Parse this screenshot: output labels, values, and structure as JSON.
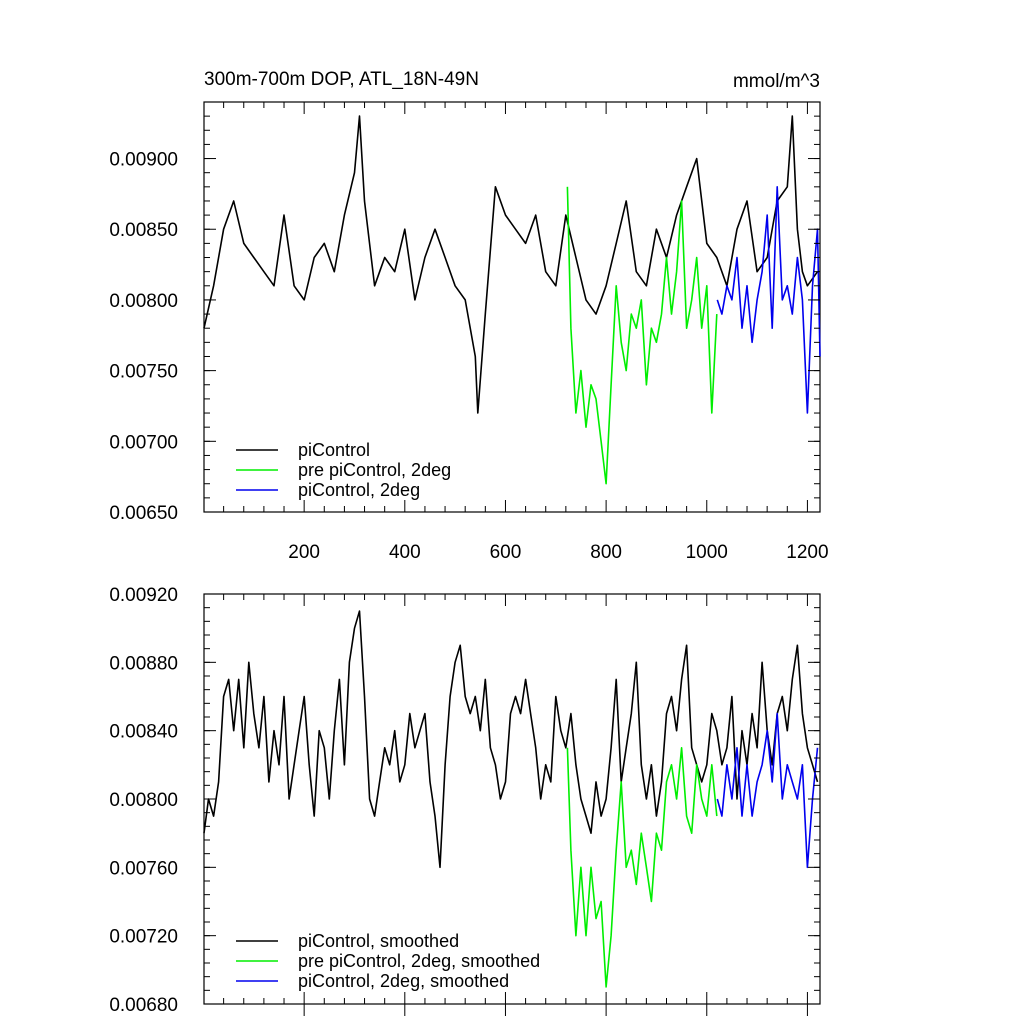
{
  "chart_data": [
    {
      "type": "line",
      "title": "300m-700m DOP, ATL_18N-49N",
      "units": "mmol/m^3",
      "xlim": [
        1,
        1225
      ],
      "ylim": [
        0.0065,
        0.0094
      ],
      "xticks": [
        200,
        400,
        600,
        800,
        1000,
        1200
      ],
      "xtick_labels": [
        "200",
        "400",
        "600",
        "800",
        "1000",
        "1200"
      ],
      "yticks": [
        0.0065,
        0.007,
        0.0075,
        0.008,
        0.0085,
        0.009
      ],
      "ytick_labels": [
        "0.00650",
        "0.00700",
        "0.00750",
        "0.00800",
        "0.00850",
        "0.00900"
      ],
      "legend": [
        "piControl",
        "pre piControl, 2deg",
        "piControl, 2deg"
      ],
      "legend_position": "bottom-left",
      "series": [
        {
          "name": "piControl",
          "color": "#000000",
          "x": [
            1,
            20,
            40,
            60,
            80,
            100,
            120,
            140,
            160,
            180,
            200,
            220,
            240,
            260,
            280,
            300,
            310,
            320,
            340,
            360,
            380,
            400,
            420,
            440,
            460,
            480,
            500,
            520,
            540,
            545,
            560,
            580,
            600,
            620,
            640,
            660,
            680,
            700,
            720,
            740,
            760,
            780,
            800,
            820,
            840,
            860,
            880,
            900,
            920,
            940,
            960,
            980,
            1000,
            1020,
            1040,
            1060,
            1080,
            1100,
            1120,
            1140,
            1160,
            1170,
            1180,
            1190,
            1200,
            1220
          ],
          "y": [
            0.0078,
            0.0081,
            0.0085,
            0.0087,
            0.0084,
            0.0083,
            0.0082,
            0.0081,
            0.0086,
            0.0081,
            0.008,
            0.0083,
            0.0084,
            0.0082,
            0.0086,
            0.0089,
            0.0093,
            0.0087,
            0.0081,
            0.0083,
            0.0082,
            0.0085,
            0.008,
            0.0083,
            0.0085,
            0.0083,
            0.0081,
            0.008,
            0.0076,
            0.0072,
            0.0079,
            0.0088,
            0.0086,
            0.0085,
            0.0084,
            0.0086,
            0.0082,
            0.0081,
            0.0086,
            0.0083,
            0.008,
            0.0079,
            0.0081,
            0.0084,
            0.0087,
            0.0082,
            0.0081,
            0.0085,
            0.0083,
            0.0086,
            0.0088,
            0.009,
            0.0084,
            0.0083,
            0.0081,
            0.0085,
            0.0087,
            0.0082,
            0.0083,
            0.0087,
            0.0088,
            0.0093,
            0.0085,
            0.0082,
            0.0081,
            0.0082
          ]
        },
        {
          "name": "pre piControl, 2deg",
          "color": "#00ee00",
          "x": [
            723,
            730,
            740,
            750,
            760,
            770,
            780,
            790,
            800,
            810,
            820,
            830,
            840,
            850,
            860,
            870,
            880,
            890,
            900,
            910,
            920,
            930,
            940,
            950,
            960,
            970,
            980,
            990,
            1000,
            1010,
            1020
          ],
          "y": [
            0.0088,
            0.0078,
            0.0072,
            0.0075,
            0.0071,
            0.0074,
            0.0073,
            0.007,
            0.0067,
            0.0074,
            0.0081,
            0.0077,
            0.0075,
            0.0079,
            0.0078,
            0.008,
            0.0074,
            0.0078,
            0.0077,
            0.0079,
            0.0083,
            0.0079,
            0.0082,
            0.0087,
            0.0078,
            0.008,
            0.0083,
            0.0078,
            0.0081,
            0.0072,
            0.0079
          ]
        },
        {
          "name": "piControl, 2deg",
          "color": "#0000ee",
          "x": [
            1021,
            1030,
            1040,
            1050,
            1060,
            1070,
            1080,
            1090,
            1100,
            1110,
            1120,
            1130,
            1140,
            1150,
            1160,
            1170,
            1180,
            1190,
            1200,
            1210,
            1220,
            1225
          ],
          "y": [
            0.008,
            0.0079,
            0.0081,
            0.008,
            0.0083,
            0.0078,
            0.0081,
            0.0077,
            0.008,
            0.0082,
            0.0086,
            0.0078,
            0.0088,
            0.008,
            0.0081,
            0.0079,
            0.0083,
            0.008,
            0.0072,
            0.0081,
            0.0085,
            0.0076
          ]
        }
      ]
    },
    {
      "type": "line",
      "title": "",
      "xlim": [
        1,
        1225
      ],
      "ylim": [
        0.0068,
        0.0092
      ],
      "xticks": [
        200,
        400,
        600,
        800,
        1000,
        1200
      ],
      "yticks": [
        0.0068,
        0.0072,
        0.0076,
        0.008,
        0.0084,
        0.0088,
        0.0092
      ],
      "ytick_labels": [
        "0.00680",
        "0.00720",
        "0.00760",
        "0.00800",
        "0.00840",
        "0.00880",
        "0.00920"
      ],
      "legend": [
        "piControl, smoothed",
        "pre piControl, 2deg, smoothed",
        "piControl, 2deg, smoothed"
      ],
      "legend_position": "bottom-left",
      "series": [
        {
          "name": "piControl, smoothed",
          "color": "#000000",
          "x": [
            1,
            10,
            20,
            30,
            40,
            50,
            60,
            70,
            80,
            90,
            100,
            110,
            120,
            130,
            140,
            150,
            160,
            170,
            180,
            190,
            200,
            210,
            220,
            230,
            240,
            250,
            260,
            270,
            280,
            290,
            300,
            310,
            320,
            330,
            340,
            350,
            360,
            370,
            380,
            390,
            400,
            410,
            420,
            430,
            440,
            450,
            460,
            470,
            480,
            490,
            500,
            510,
            520,
            530,
            540,
            550,
            560,
            570,
            580,
            590,
            600,
            610,
            620,
            630,
            640,
            650,
            660,
            670,
            680,
            690,
            700,
            710,
            720,
            730,
            740,
            750,
            760,
            770,
            780,
            790,
            800,
            810,
            820,
            830,
            840,
            850,
            860,
            870,
            880,
            890,
            900,
            910,
            920,
            930,
            940,
            950,
            960,
            970,
            980,
            990,
            1000,
            1010,
            1020,
            1030,
            1040,
            1050,
            1060,
            1070,
            1080,
            1090,
            1100,
            1110,
            1120,
            1130,
            1140,
            1150,
            1160,
            1170,
            1180,
            1190,
            1200,
            1210,
            1220
          ],
          "y": [
            0.0078,
            0.008,
            0.0079,
            0.0081,
            0.0086,
            0.0087,
            0.0084,
            0.0087,
            0.0083,
            0.0088,
            0.0085,
            0.0083,
            0.0086,
            0.0081,
            0.0084,
            0.0082,
            0.0086,
            0.008,
            0.0082,
            0.0084,
            0.0086,
            0.0082,
            0.0079,
            0.0084,
            0.0083,
            0.008,
            0.0084,
            0.0087,
            0.0082,
            0.0088,
            0.009,
            0.0091,
            0.0086,
            0.008,
            0.0079,
            0.0081,
            0.0083,
            0.0082,
            0.0084,
            0.0081,
            0.0082,
            0.0085,
            0.0083,
            0.0084,
            0.0085,
            0.0081,
            0.0079,
            0.0076,
            0.0082,
            0.0086,
            0.0088,
            0.0089,
            0.0086,
            0.0085,
            0.0086,
            0.0084,
            0.0087,
            0.0083,
            0.0082,
            0.008,
            0.0081,
            0.0085,
            0.0086,
            0.0085,
            0.0087,
            0.0085,
            0.0083,
            0.008,
            0.0082,
            0.0081,
            0.0086,
            0.0084,
            0.0083,
            0.0085,
            0.0082,
            0.008,
            0.0079,
            0.0078,
            0.0081,
            0.0079,
            0.008,
            0.0083,
            0.0087,
            0.0081,
            0.0083,
            0.0085,
            0.0088,
            0.0082,
            0.008,
            0.0082,
            0.0079,
            0.0081,
            0.0085,
            0.0086,
            0.0084,
            0.0087,
            0.0089,
            0.0083,
            0.0082,
            0.0081,
            0.0082,
            0.0085,
            0.0084,
            0.0082,
            0.0083,
            0.0086,
            0.008,
            0.0084,
            0.0082,
            0.0085,
            0.0083,
            0.0088,
            0.0084,
            0.0082,
            0.0085,
            0.0086,
            0.0084,
            0.0087,
            0.0089,
            0.0085,
            0.0083,
            0.0082,
            0.0081
          ]
        },
        {
          "name": "pre piControl, 2deg, smoothed",
          "color": "#00ee00",
          "x": [
            723,
            730,
            740,
            750,
            760,
            770,
            780,
            790,
            800,
            810,
            820,
            830,
            840,
            850,
            860,
            870,
            880,
            890,
            900,
            910,
            920,
            930,
            940,
            950,
            960,
            970,
            980,
            990,
            1000,
            1010,
            1020
          ],
          "y": [
            0.0083,
            0.0077,
            0.0072,
            0.0076,
            0.0072,
            0.0076,
            0.0073,
            0.0074,
            0.0069,
            0.0072,
            0.0077,
            0.0081,
            0.0076,
            0.0077,
            0.0075,
            0.0078,
            0.0076,
            0.0074,
            0.0078,
            0.0077,
            0.0081,
            0.0082,
            0.008,
            0.0083,
            0.0079,
            0.0078,
            0.0082,
            0.008,
            0.0079,
            0.0082,
            0.0079
          ]
        },
        {
          "name": "piControl, 2deg, smoothed",
          "color": "#0000ee",
          "x": [
            1021,
            1030,
            1040,
            1050,
            1060,
            1070,
            1080,
            1090,
            1100,
            1110,
            1120,
            1130,
            1140,
            1150,
            1160,
            1170,
            1180,
            1190,
            1200,
            1210,
            1220
          ],
          "y": [
            0.008,
            0.0079,
            0.0082,
            0.008,
            0.0083,
            0.0079,
            0.0082,
            0.0079,
            0.0081,
            0.0082,
            0.0084,
            0.0081,
            0.0085,
            0.008,
            0.0082,
            0.0081,
            0.008,
            0.0082,
            0.0076,
            0.008,
            0.0083
          ]
        }
      ]
    }
  ]
}
